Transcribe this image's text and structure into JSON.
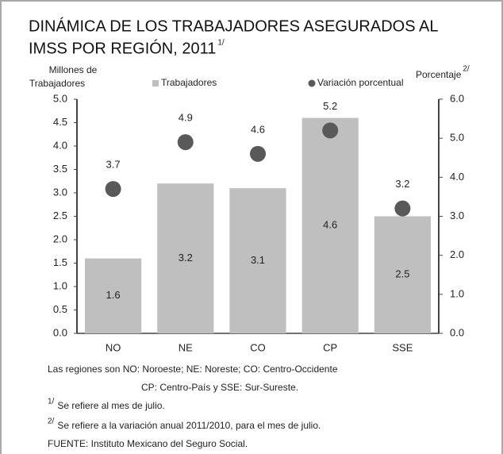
{
  "chart_data": {
    "type": "bar",
    "title": [
      "DINÁMICA DE LOS TRABAJADORES  ASEGURADOS AL",
      "IMSS POR REGIÓN, 2011"
    ],
    "title_note": "1/",
    "y_label": [
      "Millones de",
      "Trabajadores"
    ],
    "y2_label": "Porcentaje",
    "y2_label_note": "2/",
    "categories": [
      "NO",
      "NE",
      "CO",
      "CP",
      "SSE"
    ],
    "series": [
      {
        "name": "Trabajadores",
        "type": "bar",
        "color": "#bfbfbf",
        "values": [
          1.6,
          3.2,
          3.1,
          4.6,
          2.5
        ]
      },
      {
        "name": "Variación porcentual",
        "type": "scatter",
        "color": "#595959",
        "axis": "y2",
        "values": [
          3.7,
          4.9,
          4.6,
          5.2,
          3.2
        ]
      }
    ],
    "ylim": [
      0,
      5
    ],
    "yticks": [
      {
        "value": 0,
        "label": "0.0"
      },
      0.5,
      {
        "value": 1,
        "label": "1.0"
      },
      1.5,
      {
        "value": 2,
        "label": "2.0"
      },
      2.5,
      {
        "value": 3,
        "label": "3.0"
      },
      3.5,
      {
        "value": 4,
        "label": "4.0"
      },
      4.5,
      {
        "value": 5,
        "label": "5.0"
      }
    ],
    "y2lim": [
      0,
      6
    ],
    "y2ticks": [
      {
        "value": 0,
        "label": "0.0"
      },
      {
        "value": 1,
        "label": "1.0"
      },
      {
        "value": 2,
        "label": "2.0"
      },
      {
        "value": 3,
        "label": "3.0"
      },
      {
        "value": 4,
        "label": "4.0"
      },
      {
        "value": 5,
        "label": "5.0"
      },
      {
        "value": 6,
        "label": "6.0"
      }
    ],
    "grid": false,
    "legend": "top",
    "notes": [
      {
        "text": [
          "Las regiones son  NO: Noroeste; NE: Noreste; CO: Centro-Occidente",
          "CP: Centro-País y SSE: Sur-Sureste."
        ]
      },
      {
        "marker": "1/",
        "text": "Se refiere al mes de julio."
      },
      {
        "marker": "2/",
        "text": "Se refiere a la variación anual 2011/2010, para el mes de julio."
      },
      {
        "text": "FUENTE: Instituto Mexicano del Seguro Social."
      }
    ]
  }
}
